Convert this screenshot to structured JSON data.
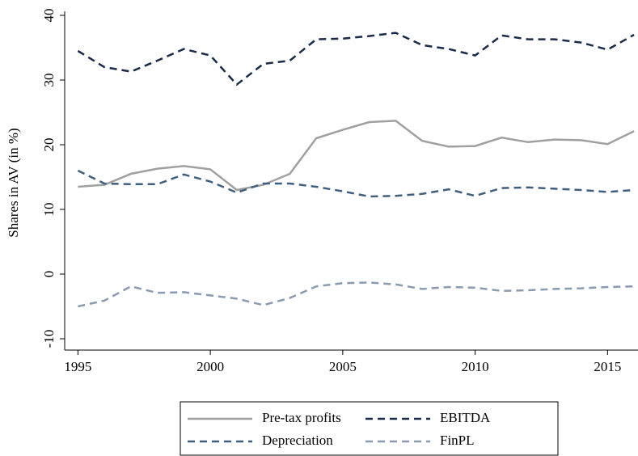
{
  "chart_data": {
    "type": "line",
    "y_label": "Shares in AV (in %)",
    "x": [
      1995,
      1996,
      1997,
      1998,
      1999,
      2000,
      2001,
      2002,
      2003,
      2004,
      2005,
      2006,
      2007,
      2008,
      2009,
      2010,
      2011,
      2012,
      2013,
      2014,
      2015,
      2016
    ],
    "series": [
      {
        "name": "Pre-tax profits",
        "color": "#a0a0a0",
        "style": "solid",
        "values": [
          13.5,
          13.8,
          15.5,
          16.3,
          16.7,
          16.2,
          13,
          13.8,
          15.5,
          21,
          22.3,
          23.5,
          23.7,
          20.6,
          19.7,
          19.8,
          21.1,
          20.4,
          20.8,
          20.7,
          20.1,
          22.1
        ]
      },
      {
        "name": "EBITDA",
        "color": "#1a2a4a",
        "style": "dashed",
        "values": [
          34.5,
          32,
          31.3,
          33,
          34.8,
          33.8,
          29.3,
          32.5,
          33,
          36.3,
          36.4,
          36.8,
          37.3,
          35.4,
          34.8,
          33.8,
          36.9,
          36.3,
          36.3,
          35.8,
          34.7,
          37
        ]
      },
      {
        "name": "Depreciation",
        "color": "#3f5f7f",
        "style": "dashed",
        "values": [
          16,
          14,
          13.9,
          13.9,
          15.4,
          14.3,
          12.6,
          14,
          14,
          13.5,
          12.8,
          12,
          12.1,
          12.4,
          13.1,
          12.1,
          13.3,
          13.4,
          13.2,
          13,
          12.7,
          13
        ]
      },
      {
        "name": "FinPL",
        "color": "#8a9ab0",
        "style": "dashed",
        "values": [
          -5,
          -4.1,
          -1.9,
          -2.9,
          -2.8,
          -3.3,
          -3.8,
          -4.8,
          -3.7,
          -1.9,
          -1.4,
          -1.3,
          -1.6,
          -2.3,
          -2,
          -2.1,
          -2.6,
          -2.5,
          -2.3,
          -2.2,
          -2,
          -1.9
        ]
      }
    ],
    "xlim": [
      1994.5,
      2016.15
    ],
    "xticks": [
      1995,
      2000,
      2005,
      2010,
      2015
    ],
    "ylim": [
      -11.75,
      40
    ],
    "yticks": [
      -10,
      0,
      10,
      20,
      30,
      40
    ],
    "grid": false,
    "legend": "bottom"
  }
}
